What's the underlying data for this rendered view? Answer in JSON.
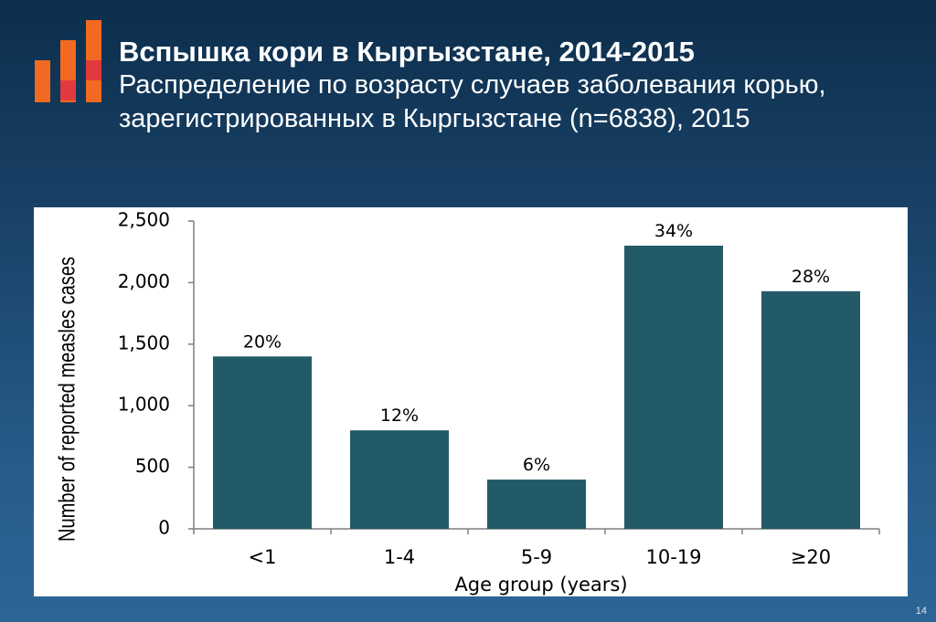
{
  "header": {
    "title": "Вспышка кори в Кыргызстане, 2014-2015",
    "subtitle": "Распределение по возрасту случаев заболевания корью, зарегистрированных в Кыргызстане (n=6838), 2015"
  },
  "logo": {
    "colors": [
      "#f26a21",
      "#e03a3e"
    ]
  },
  "chart_data": {
    "type": "bar",
    "categories": [
      "<1",
      "1-4",
      "5-9",
      "10-19",
      "≥20"
    ],
    "values": [
      1400,
      800,
      400,
      2300,
      1930
    ],
    "data_labels": [
      "20%",
      "12%",
      "6%",
      "34%",
      "28%"
    ],
    "title": "",
    "xlabel": "Age group (years)",
    "ylabel": "Number of reported measles cases",
    "ylim": [
      0,
      2500
    ],
    "yticks": [
      0,
      500,
      1000,
      1500,
      2000,
      2500
    ],
    "ytick_labels": [
      "0",
      "500",
      "1,000",
      "1,500",
      "2,000",
      "2,500"
    ],
    "grid": false,
    "bar_color": "#235a68"
  },
  "footer": {
    "page_number": "14"
  }
}
